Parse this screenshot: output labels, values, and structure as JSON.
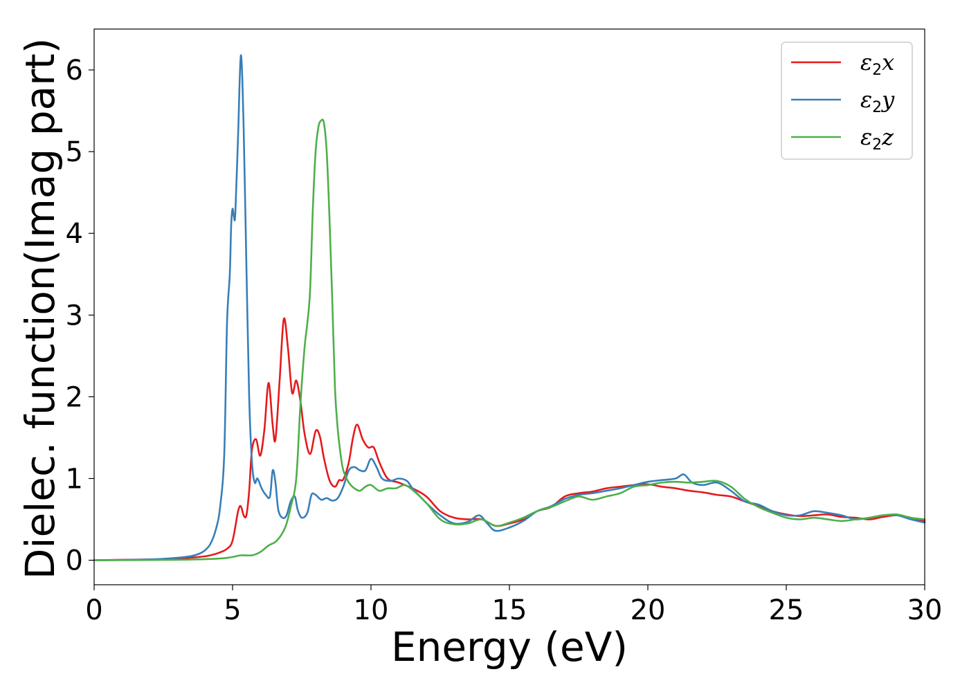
{
  "chart_data": {
    "type": "line",
    "title": "",
    "xlabel": "Energy (eV)",
    "ylabel": "Dielec. function(Imag part)",
    "xlim": [
      0,
      30
    ],
    "ylim": [
      -0.3,
      6.5
    ],
    "xticks": [
      0,
      5,
      10,
      15,
      20,
      25,
      30
    ],
    "yticks": [
      0,
      1,
      2,
      3,
      4,
      5,
      6
    ],
    "grid": false,
    "legend_position": "top-right",
    "series": [
      {
        "name": "ε2x",
        "legend_base": "ε",
        "legend_sub": "2",
        "legend_var": "x",
        "color": "#e41a1c",
        "x": [
          0,
          2,
          3,
          3.8,
          4.2,
          4.5,
          4.8,
          5.0,
          5.2,
          5.3,
          5.4,
          5.5,
          5.6,
          5.7,
          5.85,
          6.0,
          6.15,
          6.3,
          6.45,
          6.55,
          6.7,
          6.85,
          7.0,
          7.15,
          7.3,
          7.45,
          7.6,
          7.8,
          8.0,
          8.15,
          8.3,
          8.5,
          8.7,
          8.85,
          9.0,
          9.2,
          9.35,
          9.5,
          9.7,
          9.9,
          10.1,
          10.3,
          10.6,
          11.0,
          11.5,
          12.0,
          12.5,
          13.0,
          13.5,
          14.0,
          14.5,
          15.0,
          15.5,
          16.0,
          16.5,
          17.0,
          17.5,
          18.0,
          18.5,
          19.0,
          19.5,
          20.0,
          20.5,
          21.0,
          21.5,
          22.0,
          22.5,
          23.0,
          23.5,
          24.0,
          24.5,
          25.0,
          25.5,
          26.0,
          26.5,
          27.0,
          27.5,
          28.0,
          28.5,
          29.0,
          29.5,
          30.0
        ],
        "y": [
          0.0,
          0.01,
          0.02,
          0.04,
          0.06,
          0.09,
          0.14,
          0.24,
          0.6,
          0.66,
          0.55,
          0.55,
          0.85,
          1.35,
          1.48,
          1.28,
          1.6,
          2.17,
          1.65,
          1.48,
          2.2,
          2.95,
          2.6,
          2.05,
          2.2,
          1.95,
          1.55,
          1.3,
          1.58,
          1.52,
          1.25,
          0.98,
          0.9,
          0.98,
          0.99,
          1.2,
          1.5,
          1.66,
          1.48,
          1.38,
          1.38,
          1.2,
          1.0,
          0.95,
          0.88,
          0.78,
          0.6,
          0.52,
          0.5,
          0.5,
          0.42,
          0.45,
          0.5,
          0.6,
          0.65,
          0.78,
          0.82,
          0.84,
          0.88,
          0.9,
          0.92,
          0.93,
          0.9,
          0.88,
          0.85,
          0.83,
          0.8,
          0.78,
          0.72,
          0.66,
          0.6,
          0.56,
          0.54,
          0.55,
          0.56,
          0.53,
          0.52,
          0.5,
          0.53,
          0.55,
          0.52,
          0.48
        ]
      },
      {
        "name": "ε2y",
        "legend_base": "ε",
        "legend_sub": "2",
        "legend_var": "y",
        "color": "#377eb8",
        "x": [
          0,
          2,
          3,
          3.5,
          3.8,
          4.0,
          4.2,
          4.4,
          4.55,
          4.7,
          4.8,
          4.9,
          4.95,
          5.0,
          5.05,
          5.1,
          5.2,
          5.3,
          5.4,
          5.5,
          5.6,
          5.7,
          5.8,
          5.9,
          6.05,
          6.2,
          6.35,
          6.45,
          6.55,
          6.65,
          6.8,
          6.95,
          7.1,
          7.25,
          7.35,
          7.5,
          7.7,
          7.85,
          8.0,
          8.2,
          8.4,
          8.6,
          8.8,
          9.0,
          9.2,
          9.4,
          9.6,
          9.8,
          10.0,
          10.2,
          10.4,
          10.7,
          11.0,
          11.3,
          11.5,
          12.0,
          12.5,
          13.0,
          13.5,
          13.9,
          14.2,
          14.5,
          15.0,
          15.5,
          16.0,
          16.5,
          17.0,
          17.5,
          18.0,
          18.5,
          19.0,
          19.5,
          20.0,
          20.5,
          21.0,
          21.3,
          21.6,
          22.0,
          22.5,
          23.0,
          23.5,
          24.0,
          24.5,
          25.0,
          25.5,
          26.0,
          26.5,
          27.0,
          27.5,
          28.0,
          28.5,
          29.0,
          29.5,
          30.0
        ],
        "y": [
          0.0,
          0.01,
          0.03,
          0.05,
          0.08,
          0.12,
          0.2,
          0.38,
          0.65,
          1.3,
          2.9,
          3.5,
          4.1,
          4.3,
          4.2,
          4.25,
          5.2,
          6.18,
          5.3,
          3.6,
          2.0,
          1.2,
          0.95,
          1.0,
          0.88,
          0.8,
          0.78,
          1.1,
          0.95,
          0.62,
          0.52,
          0.55,
          0.72,
          0.78,
          0.62,
          0.52,
          0.58,
          0.8,
          0.8,
          0.74,
          0.76,
          0.73,
          0.76,
          0.9,
          1.1,
          1.14,
          1.1,
          1.1,
          1.24,
          1.14,
          1.0,
          0.97,
          1.0,
          0.97,
          0.88,
          0.7,
          0.55,
          0.45,
          0.47,
          0.55,
          0.45,
          0.36,
          0.4,
          0.48,
          0.6,
          0.66,
          0.75,
          0.8,
          0.82,
          0.85,
          0.88,
          0.92,
          0.96,
          0.98,
          1.0,
          1.05,
          0.95,
          0.92,
          0.95,
          0.85,
          0.72,
          0.68,
          0.6,
          0.55,
          0.55,
          0.6,
          0.58,
          0.55,
          0.5,
          0.52,
          0.55,
          0.55,
          0.5,
          0.46
        ]
      },
      {
        "name": "ε2z",
        "legend_base": "ε",
        "legend_sub": "2",
        "legend_var": "z",
        "color": "#4daf4a",
        "x": [
          0,
          3,
          4.5,
          5.0,
          5.3,
          5.7,
          6.0,
          6.3,
          6.6,
          6.9,
          7.1,
          7.3,
          7.45,
          7.6,
          7.7,
          7.8,
          7.9,
          8.0,
          8.1,
          8.2,
          8.3,
          8.4,
          8.5,
          8.6,
          8.7,
          8.8,
          8.9,
          9.0,
          9.2,
          9.4,
          9.6,
          9.8,
          10.0,
          10.3,
          10.6,
          10.9,
          11.2,
          11.5,
          12.0,
          12.5,
          13.0,
          13.5,
          14.0,
          14.5,
          15.0,
          15.5,
          16.0,
          16.5,
          17.0,
          17.5,
          18.0,
          18.5,
          19.0,
          19.5,
          20.0,
          20.5,
          21.0,
          21.5,
          22.0,
          22.5,
          23.0,
          23.5,
          24.0,
          24.5,
          25.0,
          25.5,
          26.0,
          26.5,
          27.0,
          27.5,
          28.0,
          28.5,
          29.0,
          29.5,
          30.0
        ],
        "y": [
          0.0,
          0.005,
          0.02,
          0.04,
          0.06,
          0.06,
          0.1,
          0.18,
          0.24,
          0.4,
          0.65,
          1.0,
          1.9,
          2.6,
          2.9,
          3.3,
          4.3,
          5.0,
          5.3,
          5.38,
          5.35,
          5.0,
          4.2,
          3.2,
          2.1,
          1.6,
          1.3,
          1.1,
          0.95,
          0.88,
          0.85,
          0.9,
          0.92,
          0.85,
          0.88,
          0.88,
          0.92,
          0.86,
          0.7,
          0.5,
          0.44,
          0.45,
          0.5,
          0.42,
          0.46,
          0.52,
          0.6,
          0.65,
          0.72,
          0.78,
          0.74,
          0.78,
          0.82,
          0.9,
          0.92,
          0.95,
          0.96,
          0.95,
          0.96,
          0.97,
          0.9,
          0.75,
          0.65,
          0.58,
          0.52,
          0.5,
          0.52,
          0.5,
          0.48,
          0.5,
          0.52,
          0.55,
          0.56,
          0.52,
          0.5
        ]
      }
    ]
  }
}
